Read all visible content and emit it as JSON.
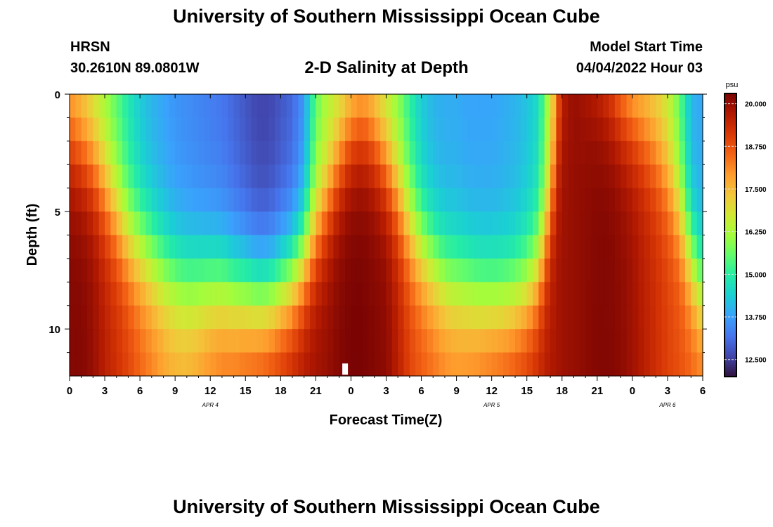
{
  "header": {
    "title": "University of Southern Mississippi Ocean Cube",
    "station": "HRSN",
    "coordinates": "30.2610N  89.0801W",
    "subtitle": "2-D Salinity at Depth",
    "model_start_label": "Model Start Time",
    "model_start_value": "04/04/2022 Hour 03"
  },
  "footer": {
    "title": "University of Southern Mississippi Ocean Cube"
  },
  "chart_data": {
    "type": "heatmap",
    "title": "2-D Salinity at Depth",
    "xlabel": "Forecast Time(Z)",
    "ylabel": "Depth (ft)",
    "x_tick_labels": [
      "0",
      "3",
      "6",
      "9",
      "12",
      "15",
      "18",
      "21",
      "0",
      "3",
      "6",
      "9",
      "12",
      "15",
      "18",
      "21",
      "0",
      "3",
      "6"
    ],
    "x_range_hours": [
      0,
      54
    ],
    "date_labels": [
      {
        "label": "APR 4",
        "hour": 12
      },
      {
        "label": "APR 5",
        "hour": 36
      },
      {
        "label": "APR 6",
        "hour": 51
      }
    ],
    "y_tick_labels": [
      "0",
      "5",
      "10"
    ],
    "y_tick_values": [
      0,
      5,
      10
    ],
    "y_range_ft": [
      0,
      12
    ],
    "depth_levels": 12,
    "colorbar": {
      "unit": "psu",
      "tick_values": [
        20.0,
        18.75,
        17.5,
        16.25,
        15.0,
        13.75,
        12.5
      ],
      "tick_labels": [
        "20.000",
        "18.750",
        "17.500",
        "16.250",
        "15.000",
        "13.750",
        "12.500"
      ],
      "range": [
        12.0,
        20.3
      ],
      "colormap": [
        "#30123b",
        "#4145ab",
        "#4675ed",
        "#39a2fc",
        "#1bcfd4",
        "#24eca6",
        "#61fc6c",
        "#a4fc3b",
        "#d1e834",
        "#f3c63a",
        "#fe9b2d",
        "#f36315",
        "#d93806",
        "#b11901",
        "#7a0403"
      ]
    },
    "surface_salinity_by_hour": [
      17.3,
      17.0,
      16.5,
      16.0,
      15.4,
      14.8,
      14.3,
      14.0,
      13.8,
      13.6,
      13.5,
      13.4,
      13.3,
      13.2,
      13.0,
      12.8,
      12.6,
      12.6,
      12.8,
      13.0,
      13.6,
      15.5,
      16.2,
      16.5,
      16.8,
      17.0,
      16.7,
      16.3,
      15.8,
      15.0,
      14.3,
      14.0,
      13.9,
      13.9,
      13.8,
      13.8,
      13.8,
      13.9,
      14.0,
      14.2,
      14.6,
      16.5,
      19.5,
      20.0,
      19.6,
      19.2,
      18.5,
      17.5,
      17.0,
      17.0,
      16.9,
      16.5,
      15.5,
      14.0,
      13.8
    ],
    "bottom_salinity_by_hour": [
      20.2,
      20.2,
      20.0,
      19.6,
      19.3,
      19.0,
      18.6,
      18.3,
      18.0,
      17.8,
      17.8,
      18.0,
      18.3,
      18.5,
      18.6,
      18.8,
      19.0,
      19.2,
      19.4,
      19.6,
      19.8,
      19.9,
      20.0,
      20.2,
      20.3,
      20.3,
      20.2,
      20.1,
      19.6,
      19.0,
      18.7,
      18.5,
      18.3,
      18.2,
      18.3,
      18.5,
      18.7,
      18.9,
      19.1,
      19.3,
      19.5,
      19.7,
      19.9,
      20.0,
      20.1,
      20.2,
      20.2,
      20.1,
      19.9,
      19.6,
      19.3,
      19.0,
      18.8,
      18.6,
      18.5
    ],
    "surface_layer_thickness_ft_by_hour": [
      2.0,
      2.5,
      3.0,
      4.0,
      5.0,
      6.0,
      6.5,
      7.0,
      7.5,
      7.8,
      8.0,
      8.0,
      8.0,
      8.0,
      8.2,
      8.3,
      8.5,
      8.5,
      8.2,
      7.8,
      7.0,
      5.8,
      4.5,
      3.0,
      1.8,
      1.5,
      2.0,
      3.0,
      4.2,
      5.5,
      6.5,
      7.2,
      7.8,
      8.0,
      8.2,
      8.5,
      8.6,
      8.7,
      8.6,
      8.3,
      7.5,
      5.0,
      1.5,
      0.5,
      0.5,
      0.5,
      0.5,
      0.8,
      1.2,
      1.8,
      2.5,
      3.5,
      5.0,
      7.0,
      8.5
    ],
    "missing_marker": {
      "hour": 23.5,
      "depth_ft": 11.5
    }
  }
}
